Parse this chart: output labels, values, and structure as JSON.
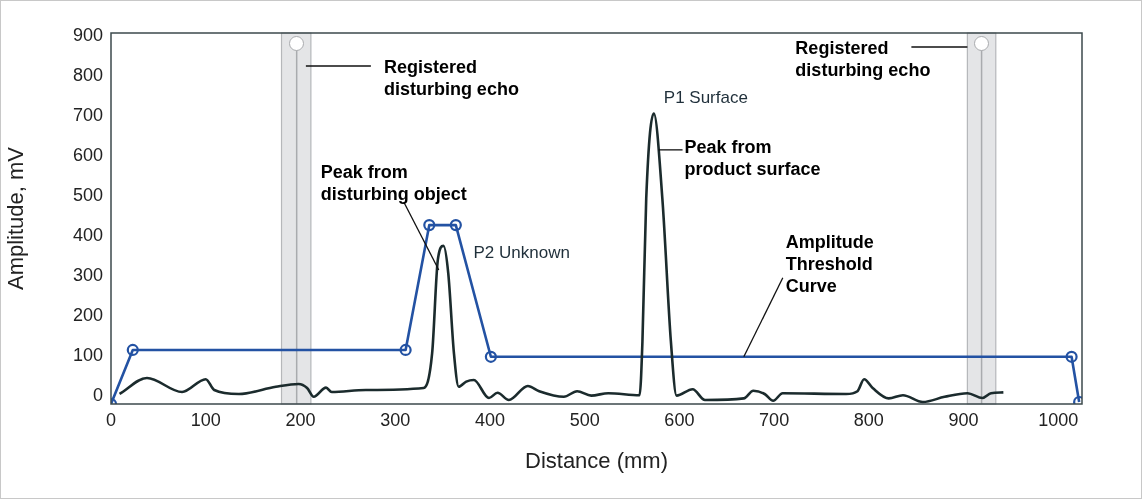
{
  "chart_data": {
    "type": "line",
    "xlabel": "Distance (mm)",
    "ylabel": "Amplitude, mV",
    "xlim": [
      0,
      1025
    ],
    "ylim": [
      -20,
      907
    ],
    "xticks": [
      0,
      100,
      200,
      300,
      400,
      500,
      600,
      700,
      800,
      900,
      1000
    ],
    "yticks": [
      0,
      100,
      200,
      300,
      400,
      500,
      600,
      700,
      800,
      900
    ],
    "grid": false,
    "legend": false,
    "line_style": "solid",
    "series": [
      {
        "color": "#1b2b2d",
        "marker": "none",
        "x": [
          9,
          38,
          75,
          100,
          109,
          135,
          174,
          198,
          207,
          214,
          227,
          233,
          269,
          330,
          339,
          345,
          351,
          356,
          362,
          367,
          375,
          383,
          399,
          408,
          420,
          440,
          452,
          478,
          492,
          507,
          525,
          558,
          561,
          565,
          573,
          582,
          591,
          597,
          614,
          627,
          668,
          678,
          690,
          699,
          709,
          776,
          788,
          795,
          804,
          821,
          836,
          857,
          880,
          904,
          920,
          929,
          942
        ],
        "values": [
          5,
          45,
          10,
          42,
          15,
          5,
          23,
          30,
          20,
          -2,
          21,
          10,
          15,
          20,
          107,
          340,
          375,
          307,
          107,
          23,
          36,
          40,
          -5,
          8,
          -10,
          25,
          12,
          -2,
          12,
          1,
          7,
          2,
          137,
          494,
          706,
          494,
          137,
          1,
          17,
          -10,
          -6,
          13,
          5,
          -12,
          7,
          5,
          12,
          42,
          20,
          -6,
          2,
          -15,
          -2,
          7,
          -5,
          7,
          9
        ]
      },
      {
        "color": "#2352a3",
        "marker": "circle",
        "x": [
          0,
          23,
          311,
          336,
          364,
          401,
          1014,
          1022
        ],
        "values": [
          -20,
          115,
          115,
          427,
          427,
          98,
          98,
          -15
        ]
      }
    ],
    "bands": [
      {
        "axis": "x",
        "from": 180,
        "to": 211,
        "label": "Registered disturbing echo",
        "color": "#e4e5e7"
      },
      {
        "axis": "x",
        "from": 904,
        "to": 934,
        "label": "Registered disturbing echo",
        "color": "#e4e5e7"
      }
    ],
    "ref_lines": [
      {
        "axis": "x",
        "value": 196,
        "color": "#a9abae"
      },
      {
        "axis": "x",
        "value": 919,
        "color": "#a9abae"
      }
    ],
    "annotations": [
      {
        "text": "P1 Surface",
        "x": 573,
        "y": 706
      },
      {
        "text": "P2 Unknown",
        "x": 351,
        "y": 375
      },
      {
        "text": "Peak from product surface",
        "x": 578,
        "y": 615
      },
      {
        "text": "Peak from disturbing object",
        "x": 346,
        "y": 315
      },
      {
        "text": "Amplitude Threshold Curve",
        "x": 668,
        "y": 98
      }
    ]
  }
}
